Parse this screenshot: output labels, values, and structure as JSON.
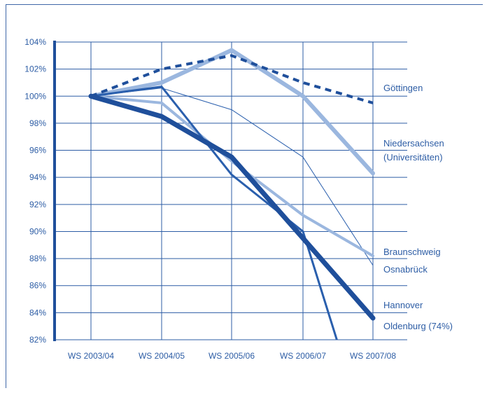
{
  "chart_data": {
    "type": "line",
    "categories": [
      "WS 2003/04",
      "WS 2004/05",
      "WS 2005/06",
      "WS 2006/07",
      "WS 2007/08"
    ],
    "y_ticks": [
      "82%",
      "84%",
      "86%",
      "88%",
      "90%",
      "92%",
      "94%",
      "96%",
      "98%",
      "100%",
      "102%",
      "104%"
    ],
    "ylim": [
      82,
      104
    ],
    "grid": true,
    "colors": {
      "dark": "#1f4f9b",
      "light": "#9bb7df",
      "medium": "#2a5fad"
    },
    "series": [
      {
        "name": "Göttingen",
        "values": [
          100,
          102,
          103,
          101,
          99.5
        ],
        "style": "dashed",
        "color": "#1f4f9b",
        "width": 4
      },
      {
        "name": "Niedersachsen (Universitäten)",
        "values": [
          100,
          101,
          103.4,
          100,
          94.3
        ],
        "style": "solid",
        "color": "#9bb7df",
        "width": 6
      },
      {
        "name": "Braunschweig",
        "values": [
          100,
          99.5,
          95.2,
          91.2,
          88.2
        ],
        "style": "solid",
        "color": "#9bb7df",
        "width": 4
      },
      {
        "name": "Osnabrück",
        "values": [
          100,
          100.6,
          99,
          95.5,
          87.5
        ],
        "style": "solid",
        "color": "#2a5fad",
        "width": 1
      },
      {
        "name": "Hannover",
        "values": [
          100,
          98.5,
          95.5,
          89.5,
          83.6
        ],
        "style": "solid",
        "color": "#1f4f9b",
        "width": 7
      },
      {
        "name": "Oldenburg (74%)",
        "values": [
          100,
          100.7,
          94.2,
          90,
          74
        ],
        "style": "solid",
        "color": "#2a5fad",
        "width": 3
      }
    ],
    "label_lines": [
      [
        "Göttingen"
      ],
      [
        "Niedersachsen",
        "(Universitäten)"
      ],
      [
        "Braunschweig"
      ],
      [
        "Osnabrück"
      ],
      [
        "Hannover"
      ],
      [
        "Oldenburg (74%)"
      ]
    ]
  }
}
